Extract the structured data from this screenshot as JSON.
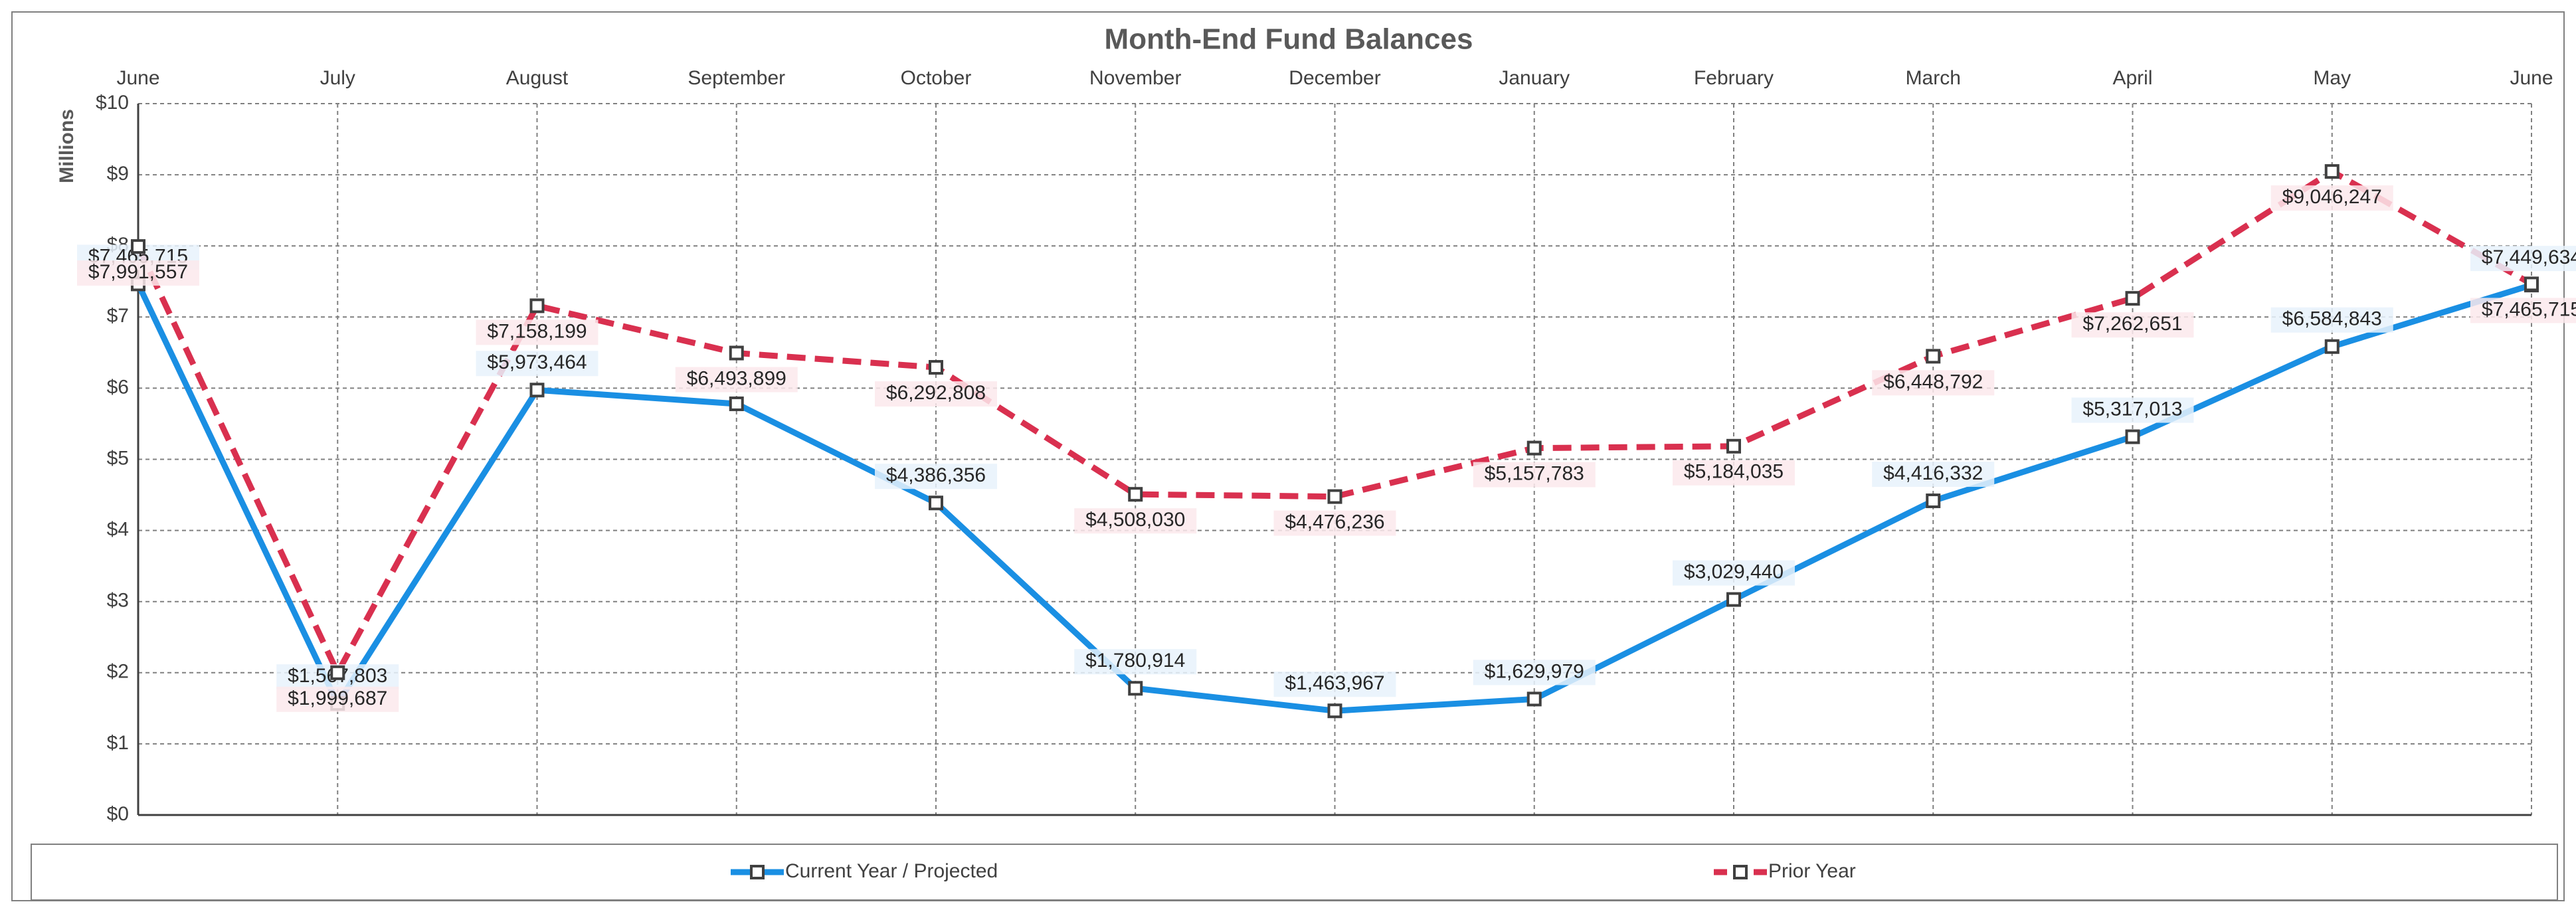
{
  "chart_data": {
    "type": "line",
    "title": "Month-End Fund Balances",
    "y_label": "Millions",
    "categories": [
      "June",
      "July",
      "August",
      "September",
      "October",
      "November",
      "December",
      "January",
      "February",
      "March",
      "April",
      "May",
      "June"
    ],
    "series": [
      {
        "name": "Current Year / Projected",
        "color": "#1a8fe3",
        "dashed": false,
        "values": [
          7465715,
          1567803,
          5973464,
          5780000,
          4386356,
          1780914,
          1463967,
          1629979,
          3029440,
          4416332,
          5317013,
          6584843,
          7449634
        ],
        "value_labels": [
          "$7,465,715",
          "$1,567,803",
          "$5,973,464",
          null,
          "$4,386,356",
          "$1,780,914",
          "$1,463,967",
          "$1,629,979",
          "$3,029,440",
          "$4,416,332",
          "$5,317,013",
          "$6,584,843",
          "$7,449,634"
        ]
      },
      {
        "name": "Prior Year",
        "color": "#d9304f",
        "dashed": true,
        "values": [
          7991557,
          1999687,
          7158199,
          6493899,
          6292808,
          4508030,
          4476236,
          5157783,
          5184035,
          6448792,
          7262651,
          9046247,
          7465715
        ],
        "value_labels": [
          "$7,991,557",
          "$1,999,687",
          "$7,158,199",
          "$6,493,899",
          "$6,292,808",
          "$4,508,030",
          "$4,476,236",
          "$5,157,783",
          "$5,184,035",
          "$6,448,792",
          "$7,262,651",
          "$9,046,247",
          "$7,465,715"
        ]
      }
    ],
    "ylim": [
      0,
      10000000
    ],
    "yticks": [
      {
        "value": 0,
        "label": "$0"
      },
      {
        "value": 1000000,
        "label": "$1"
      },
      {
        "value": 2000000,
        "label": "$2"
      },
      {
        "value": 3000000,
        "label": "$3"
      },
      {
        "value": 4000000,
        "label": "$4"
      },
      {
        "value": 5000000,
        "label": "$5"
      },
      {
        "value": 6000000,
        "label": "$6"
      },
      {
        "value": 7000000,
        "label": "$7"
      },
      {
        "value": 8000000,
        "label": "$8"
      },
      {
        "value": 9000000,
        "label": "$9"
      },
      {
        "value": 10000000,
        "label": "$10"
      }
    ],
    "grid": true,
    "legend": "bottom"
  }
}
